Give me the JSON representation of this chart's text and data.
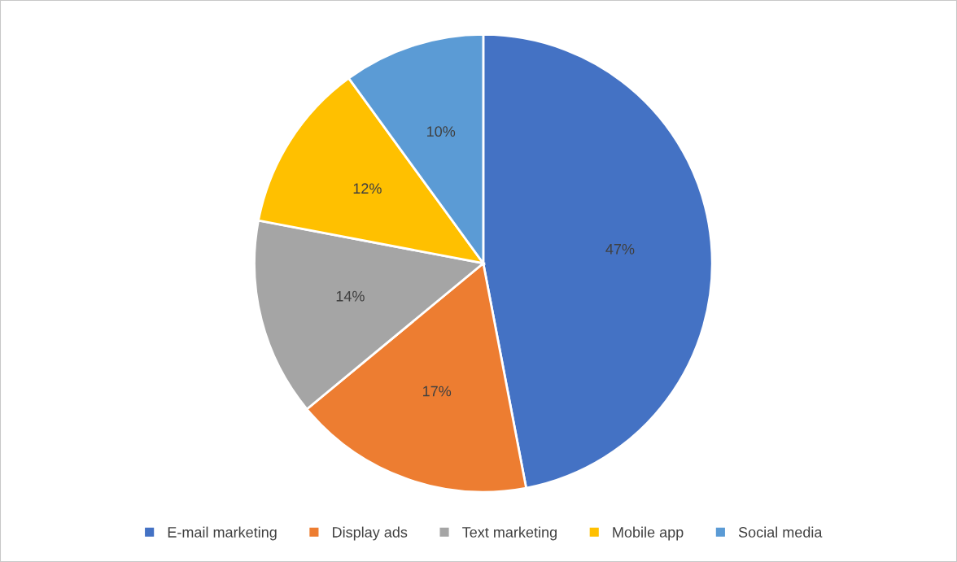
{
  "chart_data": {
    "type": "pie",
    "categories": [
      "E-mail marketing",
      "Display ads",
      "Text marketing",
      "Mobile app",
      "Social media"
    ],
    "values": [
      47,
      17,
      14,
      12,
      10
    ],
    "colors": [
      "#4472c4",
      "#ed7d31",
      "#a5a5a5",
      "#ffc000",
      "#5b9bd5"
    ],
    "value_labels": [
      "47%",
      "17%",
      "14%",
      "12%",
      "10%"
    ],
    "legend": "bottom"
  }
}
